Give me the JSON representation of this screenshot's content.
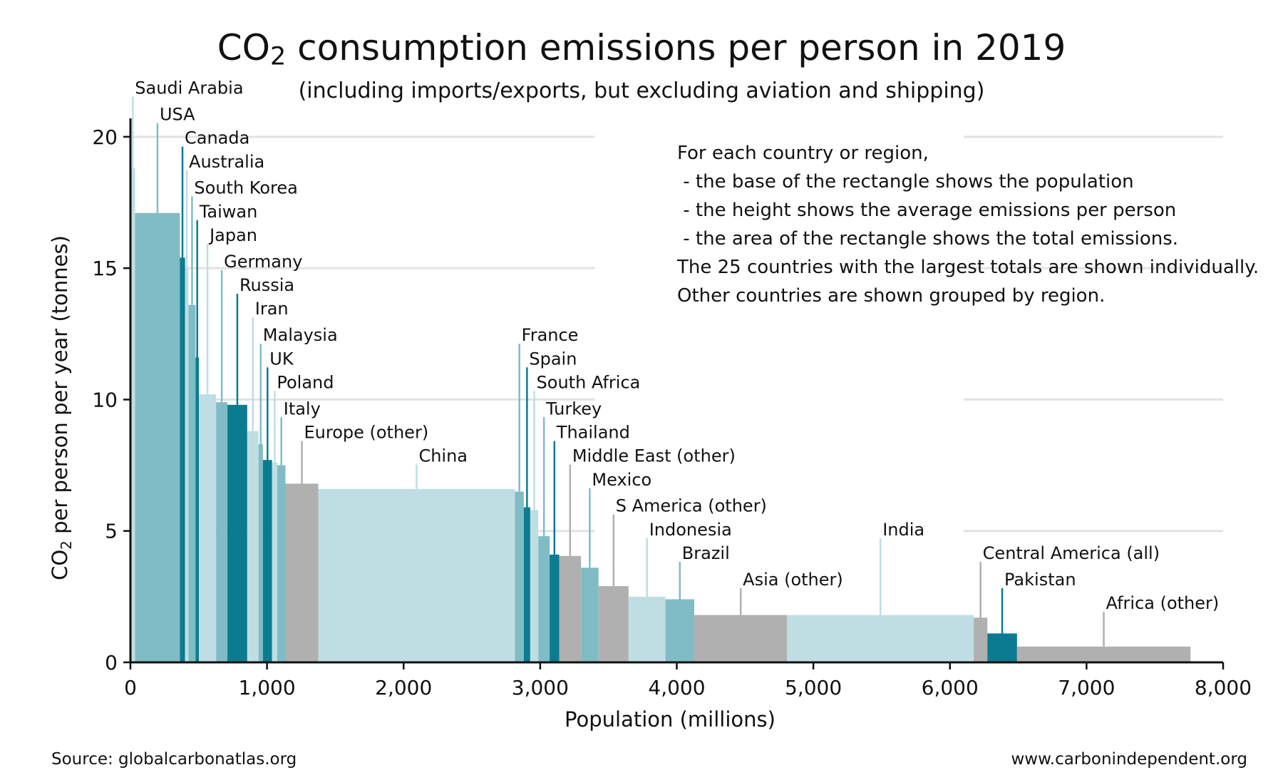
{
  "title_prefix": "CO",
  "title_subscript": "2",
  "title_rest": " consumption emissions per person in 2019",
  "subtitle": "(including imports/exports, but excluding aviation and shipping)",
  "notes": [
    "For each country or region,",
    " - the base of the rectangle shows the population",
    " - the height shows the average emissions per person",
    " - the area of the rectangle shows the total emissions.",
    "The 25 countries with the largest totals are shown individually.",
    "Other countries are shown grouped by region."
  ],
  "footer_source": "Source: globalcarbonatlas.org",
  "footer_site": "www.carbonindependent.org",
  "colors": {
    "dark_teal": "#0b7b91",
    "mid_teal": "#80bcc6",
    "light_teal": "#bfdee3",
    "gray": "#b0b0b0"
  },
  "chart_data": {
    "type": "bar",
    "subtype": "variable-width (marimekko) bar chart",
    "xlabel": "Population (millions)",
    "ylabel_prefix": "CO",
    "ylabel_subscript": "2",
    "ylabel_rest": " per person per year (tonnes)",
    "xlim": [
      0,
      8000
    ],
    "ylim": [
      0,
      21
    ],
    "xticks": [
      0,
      1000,
      2000,
      3000,
      4000,
      5000,
      6000,
      7000,
      8000
    ],
    "xtick_labels": [
      "0",
      "1,000",
      "2,000",
      "3,000",
      "4,000",
      "5,000",
      "6,000",
      "7,000",
      "8,000"
    ],
    "yticks": [
      0,
      5,
      10,
      15,
      20
    ],
    "ytick_labels": [
      "0",
      "5",
      "10",
      "15",
      "20"
    ],
    "grid": "horizontal",
    "bars": [
      {
        "name": "Saudi Arabia",
        "population": 34,
        "value": 18.8,
        "color": "light_teal",
        "label_y": 21.2
      },
      {
        "name": "USA",
        "population": 328,
        "value": 17.1,
        "color": "mid_teal",
        "label_y": 20.2
      },
      {
        "name": "Canada",
        "population": 38,
        "value": 15.4,
        "color": "dark_teal",
        "label_y": 19.3
      },
      {
        "name": "Australia",
        "population": 25,
        "value": 15.0,
        "color": "light_teal",
        "label_y": 18.4
      },
      {
        "name": "South Korea",
        "population": 52,
        "value": 13.6,
        "color": "mid_teal",
        "label_y": 17.4
      },
      {
        "name": "Taiwan",
        "population": 24,
        "value": 11.6,
        "color": "dark_teal",
        "label_y": 16.5
      },
      {
        "name": "Japan",
        "population": 126,
        "value": 10.2,
        "color": "light_teal",
        "label_y": 15.6
      },
      {
        "name": "Germany",
        "population": 83,
        "value": 9.9,
        "color": "mid_teal",
        "label_y": 14.6
      },
      {
        "name": "Russia",
        "population": 145,
        "value": 9.8,
        "color": "dark_teal",
        "label_y": 13.7
      },
      {
        "name": "Iran",
        "population": 83,
        "value": 8.8,
        "color": "light_teal",
        "label_y": 12.8
      },
      {
        "name": "Malaysia",
        "population": 32,
        "value": 8.3,
        "color": "mid_teal",
        "label_y": 11.8
      },
      {
        "name": "UK",
        "population": 67,
        "value": 7.7,
        "color": "dark_teal",
        "label_y": 10.9
      },
      {
        "name": "Poland",
        "population": 38,
        "value": 7.6,
        "color": "light_teal",
        "label_y": 10.0
      },
      {
        "name": "Italy",
        "population": 60,
        "value": 7.5,
        "color": "mid_teal",
        "label_y": 9.0
      },
      {
        "name": "Europe (other)",
        "population": 240,
        "value": 6.8,
        "color": "gray",
        "label_y": 8.1
      },
      {
        "name": "China",
        "population": 1440,
        "value": 6.6,
        "color": "light_teal",
        "label_y": 7.2
      },
      {
        "name": "France",
        "population": 65,
        "value": 6.5,
        "color": "mid_teal",
        "label_y": 11.8
      },
      {
        "name": "Spain",
        "population": 47,
        "value": 5.9,
        "color": "dark_teal",
        "label_y": 10.9
      },
      {
        "name": "South Africa",
        "population": 59,
        "value": 5.8,
        "color": "light_teal",
        "label_y": 10.0
      },
      {
        "name": "Turkey",
        "population": 83,
        "value": 4.8,
        "color": "mid_teal",
        "label_y": 9.0
      },
      {
        "name": "Thailand",
        "population": 70,
        "value": 4.1,
        "color": "dark_teal",
        "label_y": 8.1
      },
      {
        "name": "Middle East (other)",
        "population": 160,
        "value": 4.05,
        "color": "gray",
        "label_y": 7.2
      },
      {
        "name": "Mexico",
        "population": 128,
        "value": 3.6,
        "color": "mid_teal",
        "label_y": 6.3
      },
      {
        "name": "S America (other)",
        "population": 220,
        "value": 2.9,
        "color": "gray",
        "label_y": 5.3
      },
      {
        "name": "Indonesia",
        "population": 270,
        "value": 2.5,
        "color": "light_teal",
        "label_y": 4.4
      },
      {
        "name": "Brazil",
        "population": 211,
        "value": 2.4,
        "color": "mid_teal",
        "label_y": 3.5
      },
      {
        "name": "Asia (other)",
        "population": 680,
        "value": 1.8,
        "color": "gray",
        "label_y": 2.5
      },
      {
        "name": "India",
        "population": 1366,
        "value": 1.8,
        "color": "light_teal",
        "label_y": 4.4
      },
      {
        "name": "Central America (all)",
        "population": 100,
        "value": 1.7,
        "color": "gray",
        "label_y": 3.5
      },
      {
        "name": "Pakistan",
        "population": 217,
        "value": 1.1,
        "color": "dark_teal",
        "label_y": 2.5
      },
      {
        "name": "Africa (other)",
        "population": 1270,
        "value": 0.6,
        "color": "gray",
        "label_y": 1.6
      }
    ]
  }
}
